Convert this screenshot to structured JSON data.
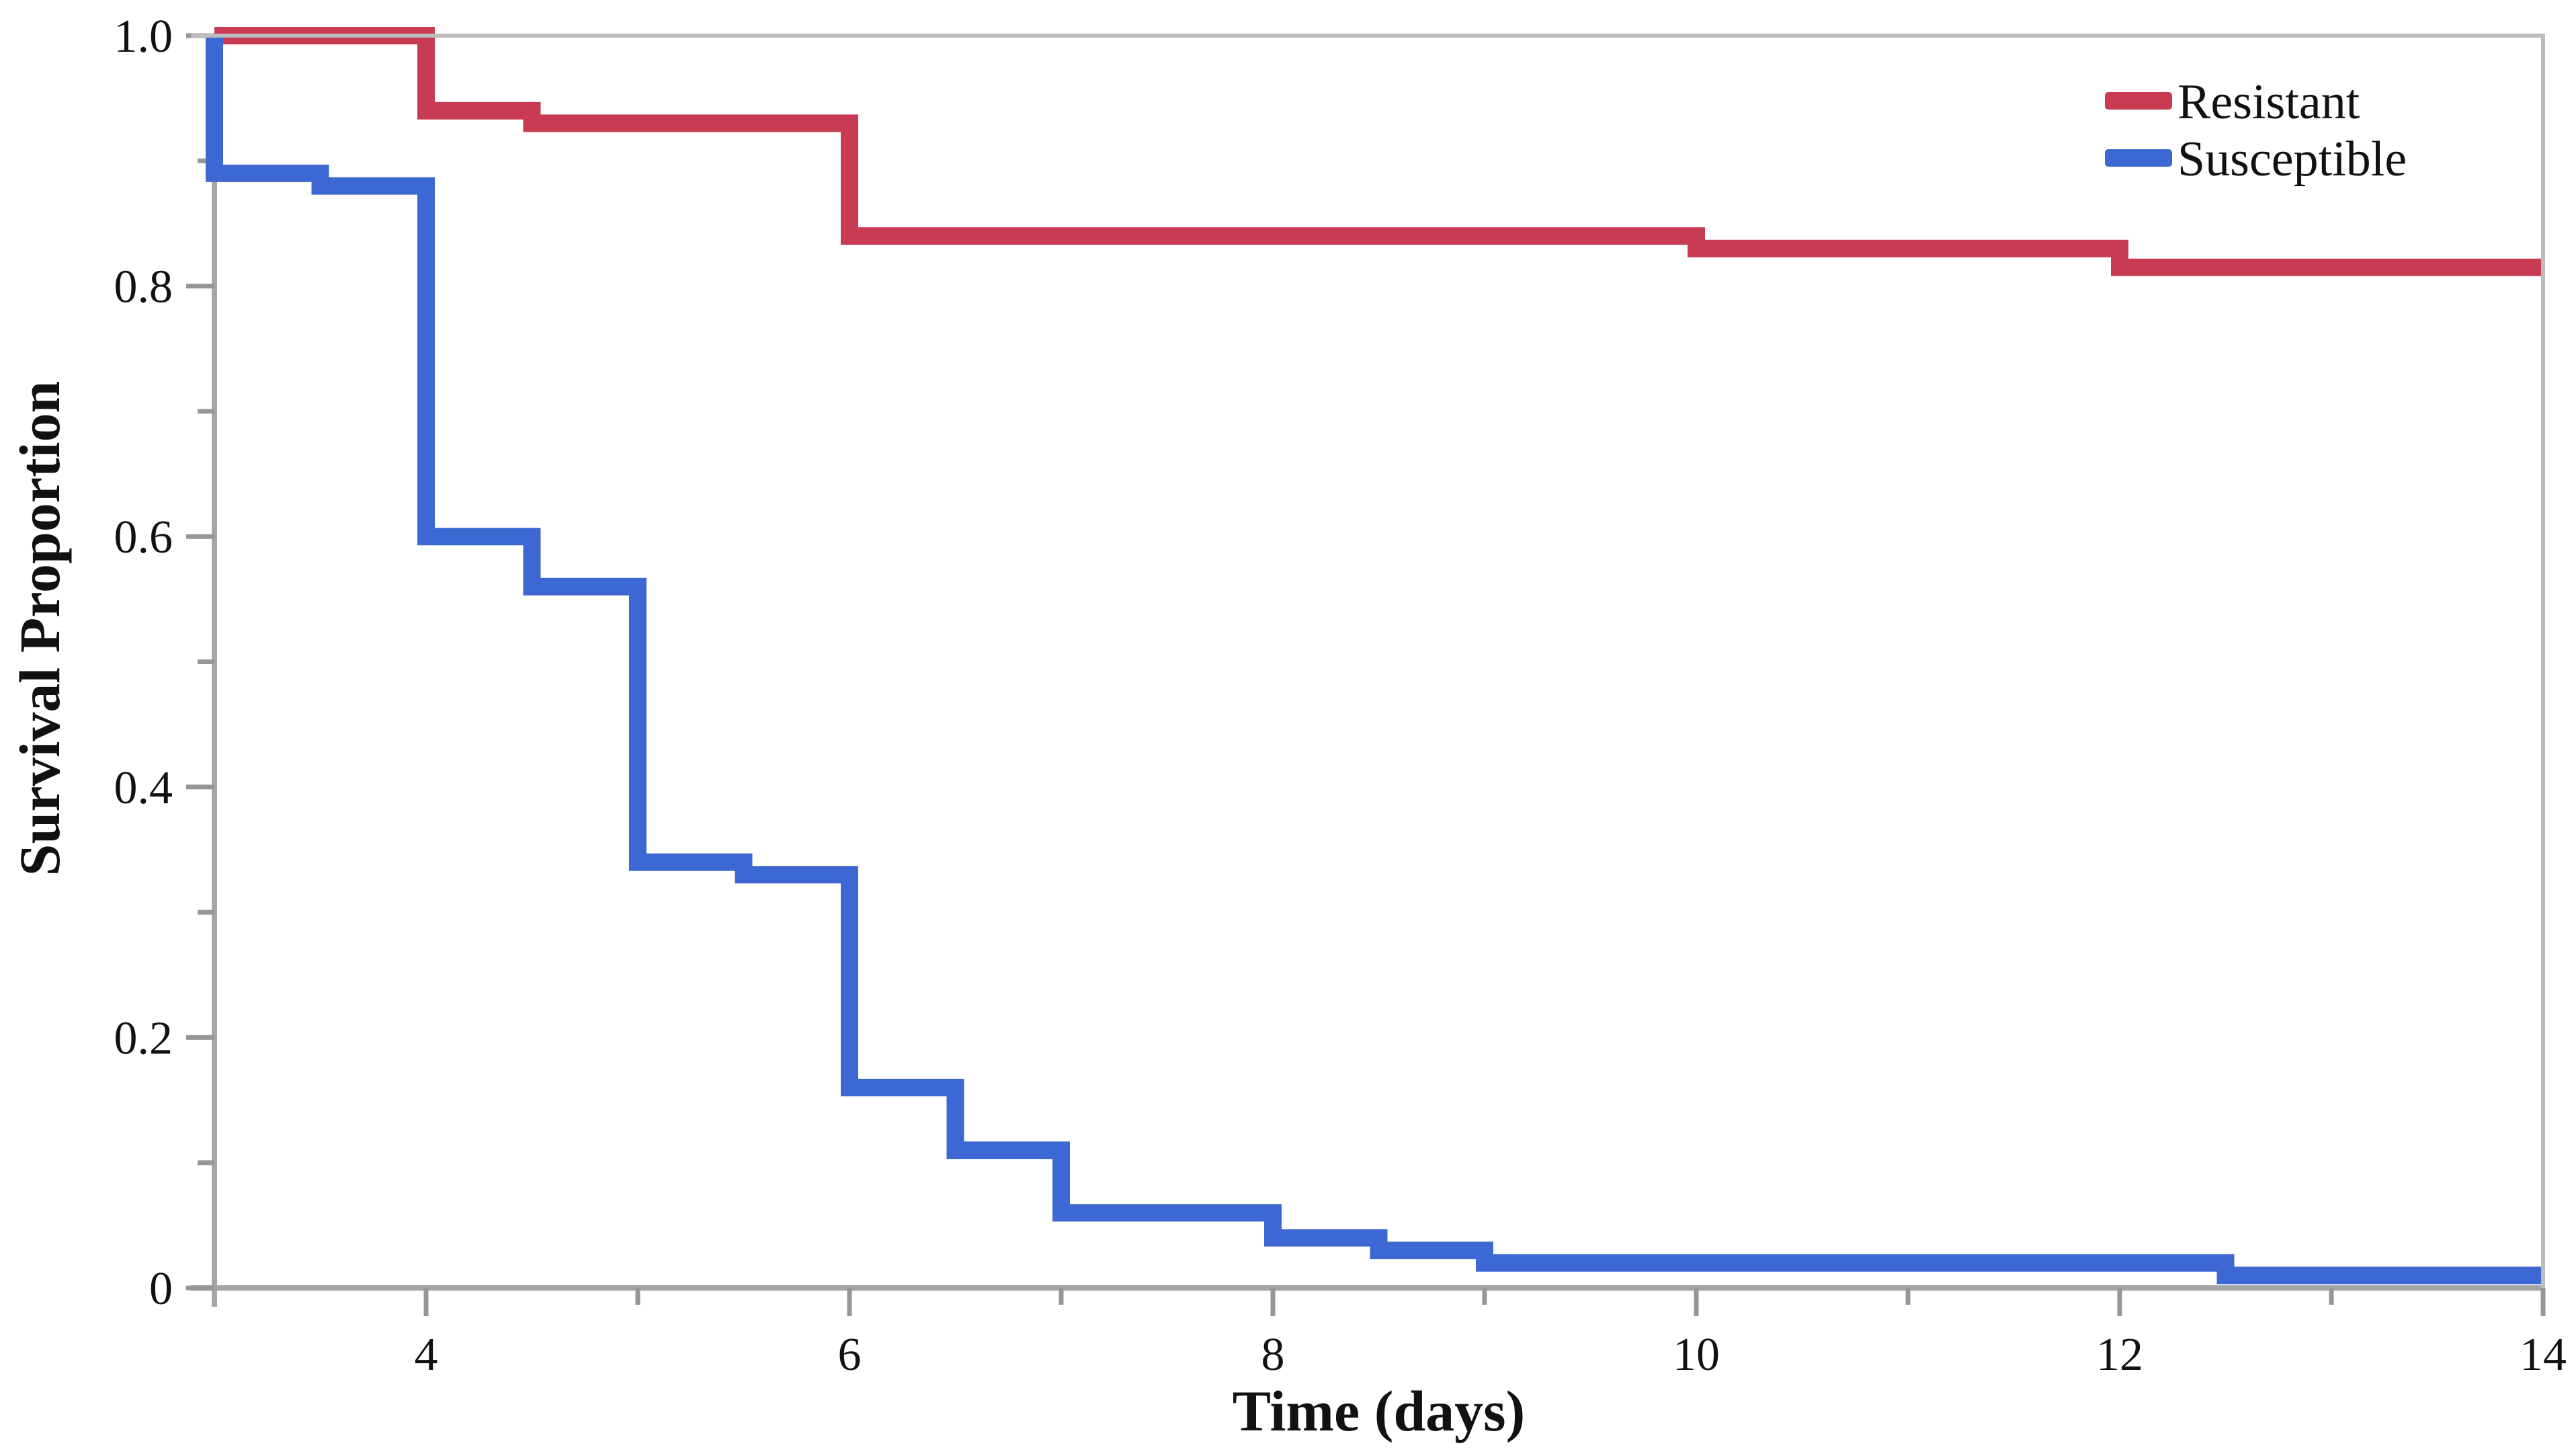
{
  "chart_data": {
    "type": "line",
    "variant": "kaplan-meier-step",
    "title": "",
    "xlabel": "Time (days)",
    "ylabel": "Survival Proportion",
    "xlim": [
      3,
      14
    ],
    "ylim": [
      0,
      1
    ],
    "grid": false,
    "x_major_ticks": [
      4,
      6,
      8,
      10,
      12,
      14
    ],
    "x_major_tick_labels": [
      "4",
      "6",
      "8",
      "10",
      "12",
      "14"
    ],
    "x_minor_ticks": [
      5,
      7,
      9,
      11,
      13
    ],
    "y_major_ticks": [
      1.0,
      0.8,
      0.6,
      0.4,
      0.2,
      0
    ],
    "y_major_tick_labels": [
      "1.0",
      "0.8",
      "0.6",
      "0.4",
      "0.2",
      "0"
    ],
    "y_minor_ticks": [
      0.9,
      0.7,
      0.5,
      0.3,
      0.1
    ],
    "legend": {
      "position": "top-right",
      "entries": [
        {
          "label": "Resistant",
          "color": "#c93b53"
        },
        {
          "label": "Susceptible",
          "color": "#3d68d3"
        }
      ]
    },
    "series": [
      {
        "name": "Resistant",
        "color": "#c93b53",
        "step_points": [
          [
            3,
            1.0
          ],
          [
            4,
            1.0
          ],
          [
            4,
            0.94
          ],
          [
            4.5,
            0.94
          ],
          [
            4.5,
            0.93
          ],
          [
            6,
            0.93
          ],
          [
            6,
            0.84
          ],
          [
            10,
            0.84
          ],
          [
            10,
            0.83
          ],
          [
            12,
            0.83
          ],
          [
            12,
            0.815
          ],
          [
            14,
            0.815
          ]
        ]
      },
      {
        "name": "Susceptible",
        "color": "#3d68d3",
        "step_points": [
          [
            3,
            1.0
          ],
          [
            3,
            0.89
          ],
          [
            3.5,
            0.89
          ],
          [
            3.5,
            0.88
          ],
          [
            4,
            0.88
          ],
          [
            4,
            0.6
          ],
          [
            4.5,
            0.6
          ],
          [
            4.5,
            0.56
          ],
          [
            5,
            0.56
          ],
          [
            5,
            0.34
          ],
          [
            5.5,
            0.34
          ],
          [
            5.5,
            0.33
          ],
          [
            6,
            0.33
          ],
          [
            6,
            0.16
          ],
          [
            6.5,
            0.16
          ],
          [
            6.5,
            0.11
          ],
          [
            7,
            0.11
          ],
          [
            7,
            0.06
          ],
          [
            8,
            0.06
          ],
          [
            8,
            0.04
          ],
          [
            8.5,
            0.04
          ],
          [
            8.5,
            0.03
          ],
          [
            9,
            0.03
          ],
          [
            9,
            0.02
          ],
          [
            12.5,
            0.02
          ],
          [
            12.5,
            0.01
          ],
          [
            14,
            0.01
          ]
        ]
      }
    ],
    "colors": {
      "background": "#ffffff",
      "axis": "#a5a5a5",
      "frame": "#bcbcbc",
      "tick": "#969696",
      "text": "#111111"
    }
  }
}
